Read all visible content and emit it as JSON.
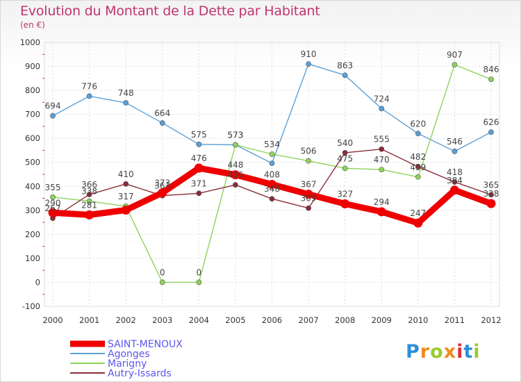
{
  "header": {
    "title": "Evolution du Montant de la Dette par Habitant",
    "unit": "(en €)"
  },
  "brand": {
    "logo_text": "Proxiti",
    "letter_colors": [
      "#2e8fd8",
      "#f08a1c",
      "#9acb2c",
      "#f08a1c",
      "#d8303c",
      "#2e8fd8",
      "#9acb2c"
    ]
  },
  "chart_data": {
    "type": "line",
    "title": "Evolution du Montant de la Dette par Habitant",
    "subtitle": "(en €)",
    "xlabel": "",
    "ylabel": "",
    "categories": [
      "2000",
      "2001",
      "2002",
      "2003",
      "2004",
      "2005",
      "2006",
      "2007",
      "2008",
      "2009",
      "2010",
      "2011",
      "2012"
    ],
    "ylim": [
      -100,
      1000
    ],
    "yticks": [
      "-100",
      "0",
      "100",
      "200",
      "300",
      "400",
      "500",
      "600",
      "700",
      "800",
      "900",
      "1000"
    ],
    "grid": true,
    "legend_position": "bottom-left",
    "series": [
      {
        "name": "Agonges",
        "color": "#5aa0d8",
        "values": [
          694,
          776,
          748,
          664,
          575,
          573,
          496,
          910,
          863,
          724,
          620,
          546,
          626
        ],
        "labels": [
          "694",
          "776",
          "748",
          "664",
          "575",
          "573",
          "",
          "910",
          "863",
          "724",
          "620",
          "546",
          "626"
        ]
      },
      {
        "name": "Marigny",
        "color": "#8ed35a",
        "values": [
          355,
          338,
          317,
          0,
          0,
          573,
          534,
          506,
          475,
          470,
          439,
          907,
          846
        ],
        "labels": [
          "355",
          "338",
          "317",
          "0",
          "0",
          "573",
          "534",
          "506",
          "475",
          "470",
          "439",
          "907",
          "846"
        ]
      },
      {
        "name": "Autry-Issards",
        "color": "#8b2c38",
        "values": [
          267,
          366,
          410,
          361,
          371,
          406,
          348,
          309,
          540,
          555,
          482,
          418,
          365
        ],
        "labels": [
          "267",
          "366",
          "410",
          "361",
          "371",
          "406",
          "348",
          "309",
          "540",
          "555",
          "482",
          "418",
          "365"
        ]
      },
      {
        "name": "SAINT-MENOUX",
        "color": "#ee0000",
        "values": [
          290,
          281,
          301,
          373,
          476,
          448,
          408,
          367,
          327,
          294,
          247,
          384,
          328
        ],
        "labels": [
          "290",
          "281",
          "",
          "373",
          "476",
          "448",
          "408",
          "367",
          "327",
          "294",
          "247",
          "384",
          "328"
        ]
      }
    ],
    "legend": [
      "SAINT-MENOUX",
      "Agonges",
      "Marigny",
      "Autry-Issards"
    ]
  }
}
